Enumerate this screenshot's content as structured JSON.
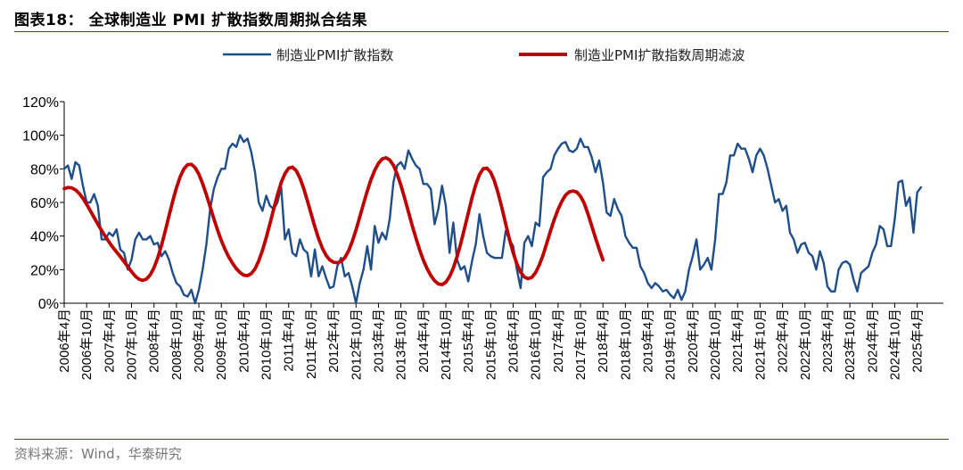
{
  "title": "图表18：  全球制造业 PMI 扩散指数周期拟合结果",
  "source": "资料来源：Wind，华泰研究",
  "colors": {
    "pmi": "#1f4e8c",
    "filter": "#c00000",
    "rule": "#1f4e79"
  },
  "chart_data": {
    "type": "line",
    "ylim": [
      0,
      120
    ],
    "yticks": [
      "0%",
      "20%",
      "40%",
      "60%",
      "80%",
      "100%",
      "120%"
    ],
    "ytick_values": [
      0,
      20,
      40,
      60,
      80,
      100,
      120
    ],
    "x_start": "2006-04",
    "x_end": "2025-11",
    "xticks": [
      "2006年4月",
      "2006年10月",
      "2007年4月",
      "2007年10月",
      "2008年4月",
      "2008年10月",
      "2009年4月",
      "2009年10月",
      "2010年4月",
      "2010年10月",
      "2011年4月",
      "2011年10月",
      "2012年4月",
      "2012年10月",
      "2013年4月",
      "2013年10月",
      "2014年4月",
      "2014年10月",
      "2015年4月",
      "2015年10月",
      "2016年4月",
      "2016年10月",
      "2017年4月",
      "2017年10月",
      "2018年4月",
      "2018年10月",
      "2019年4月",
      "2019年10月",
      "2020年4月",
      "2020年10月",
      "2021年4月",
      "2021年10月",
      "2022年4月",
      "2022年10月",
      "2023年4月",
      "2023年10月",
      "2024年4月",
      "2024年10月",
      "2025年4月"
    ],
    "series": [
      {
        "name": "制造业PMI扩散指数",
        "start": "2006-04",
        "values": [
          80,
          82,
          74,
          84,
          82,
          70,
          60,
          60,
          65,
          58,
          38,
          38,
          42,
          40,
          44,
          32,
          30,
          20,
          26,
          38,
          42,
          38,
          38,
          40,
          35,
          36,
          28,
          31,
          26,
          18,
          12,
          10,
          5,
          4,
          8,
          0,
          8,
          20,
          35,
          56,
          68,
          75,
          80,
          80,
          92,
          95,
          93,
          100,
          96,
          98,
          90,
          78,
          60,
          55,
          64,
          58,
          56,
          60,
          69,
          38,
          44,
          30,
          28,
          38,
          32,
          30,
          16,
          32,
          16,
          22,
          15,
          9,
          10,
          22,
          27,
          16,
          18,
          10,
          0,
          12,
          20,
          34,
          20,
          46,
          36,
          42,
          38,
          50,
          72,
          82,
          84,
          80,
          91,
          86,
          82,
          80,
          71,
          71,
          68,
          47,
          56,
          70,
          58,
          30,
          48,
          26,
          20,
          22,
          13,
          25,
          35,
          53,
          40,
          30,
          28,
          27,
          27,
          27,
          43,
          38,
          34,
          20,
          9,
          36,
          40,
          34,
          48,
          46,
          75,
          78,
          80,
          88,
          92,
          95,
          96,
          91,
          90,
          92,
          98,
          93,
          93,
          87,
          78,
          85,
          72,
          54,
          52,
          62,
          56,
          52,
          40,
          36,
          33,
          33,
          22,
          18,
          12,
          9,
          12,
          10,
          7,
          8,
          5,
          3,
          8,
          2,
          7,
          20,
          28,
          38,
          20,
          23,
          27,
          20,
          38,
          65,
          65,
          72,
          88,
          88,
          95,
          92,
          92,
          86,
          78,
          88,
          92,
          88,
          80,
          70,
          60,
          62,
          55,
          58,
          42,
          38,
          30,
          35,
          36,
          30,
          28,
          20,
          31,
          24,
          10,
          7,
          7,
          20,
          24,
          25,
          23,
          14,
          7,
          18,
          20,
          22,
          30,
          35,
          46,
          44,
          34,
          34,
          50,
          72,
          73,
          58,
          63,
          42,
          66,
          69
        ]
      },
      {
        "name": "制造业PMI扩散指数周期滤波",
        "start": "2006-04",
        "values": [
          68.2,
          68.9,
          68.7,
          67.5,
          65.4,
          62.5,
          58.9,
          55.0,
          51.0,
          47.0,
          43.3,
          39.7,
          36.4,
          33.3,
          30.5,
          27.7,
          24.8,
          21.8,
          18.8,
          16.1,
          14.3,
          13.6,
          14.4,
          16.9,
          21.1,
          27.0,
          34.4,
          42.9,
          51.9,
          60.7,
          68.7,
          75.3,
          80.0,
          82.5,
          82.7,
          80.7,
          76.8,
          71.2,
          64.6,
          57.5,
          50.3,
          43.5,
          37.3,
          32.0,
          27.5,
          23.8,
          20.6,
          18.2,
          16.7,
          16.4,
          17.6,
          20.5,
          25.2,
          31.5,
          39.0,
          47.4,
          56.1,
          64.5,
          71.8,
          77.2,
          80.4,
          81.0,
          79.0,
          74.6,
          68.4,
          61.1,
          53.2,
          45.5,
          38.5,
          32.8,
          28.5,
          25.8,
          24.4,
          24.1,
          24.9,
          27.1,
          31.1,
          36.8,
          43.6,
          51.3,
          59.2,
          66.7,
          73.6,
          79.1,
          83.3,
          85.9,
          86.6,
          85.3,
          82.1,
          76.9,
          70.2,
          62.6,
          54.5,
          46.4,
          38.9,
          31.8,
          25.6,
          20.6,
          16.5,
          13.4,
          11.5,
          11.1,
          12.5,
          15.8,
          20.9,
          27.6,
          35.6,
          44.5,
          53.7,
          62.7,
          70.5,
          76.6,
          80.1,
          80.4,
          77.9,
          72.8,
          65.4,
          56.7,
          47.3,
          38.2,
          30.2,
          23.4,
          18.5,
          15.6,
          14.6,
          15.4,
          18.2,
          22.8,
          28.7,
          35.8,
          43.1,
          49.9,
          55.8,
          60.6,
          64.3,
          66.3,
          66.8,
          66.2,
          63.7,
          59.5,
          53.2,
          46.1,
          38.9,
          32.2,
          25.8
        ]
      }
    ]
  }
}
